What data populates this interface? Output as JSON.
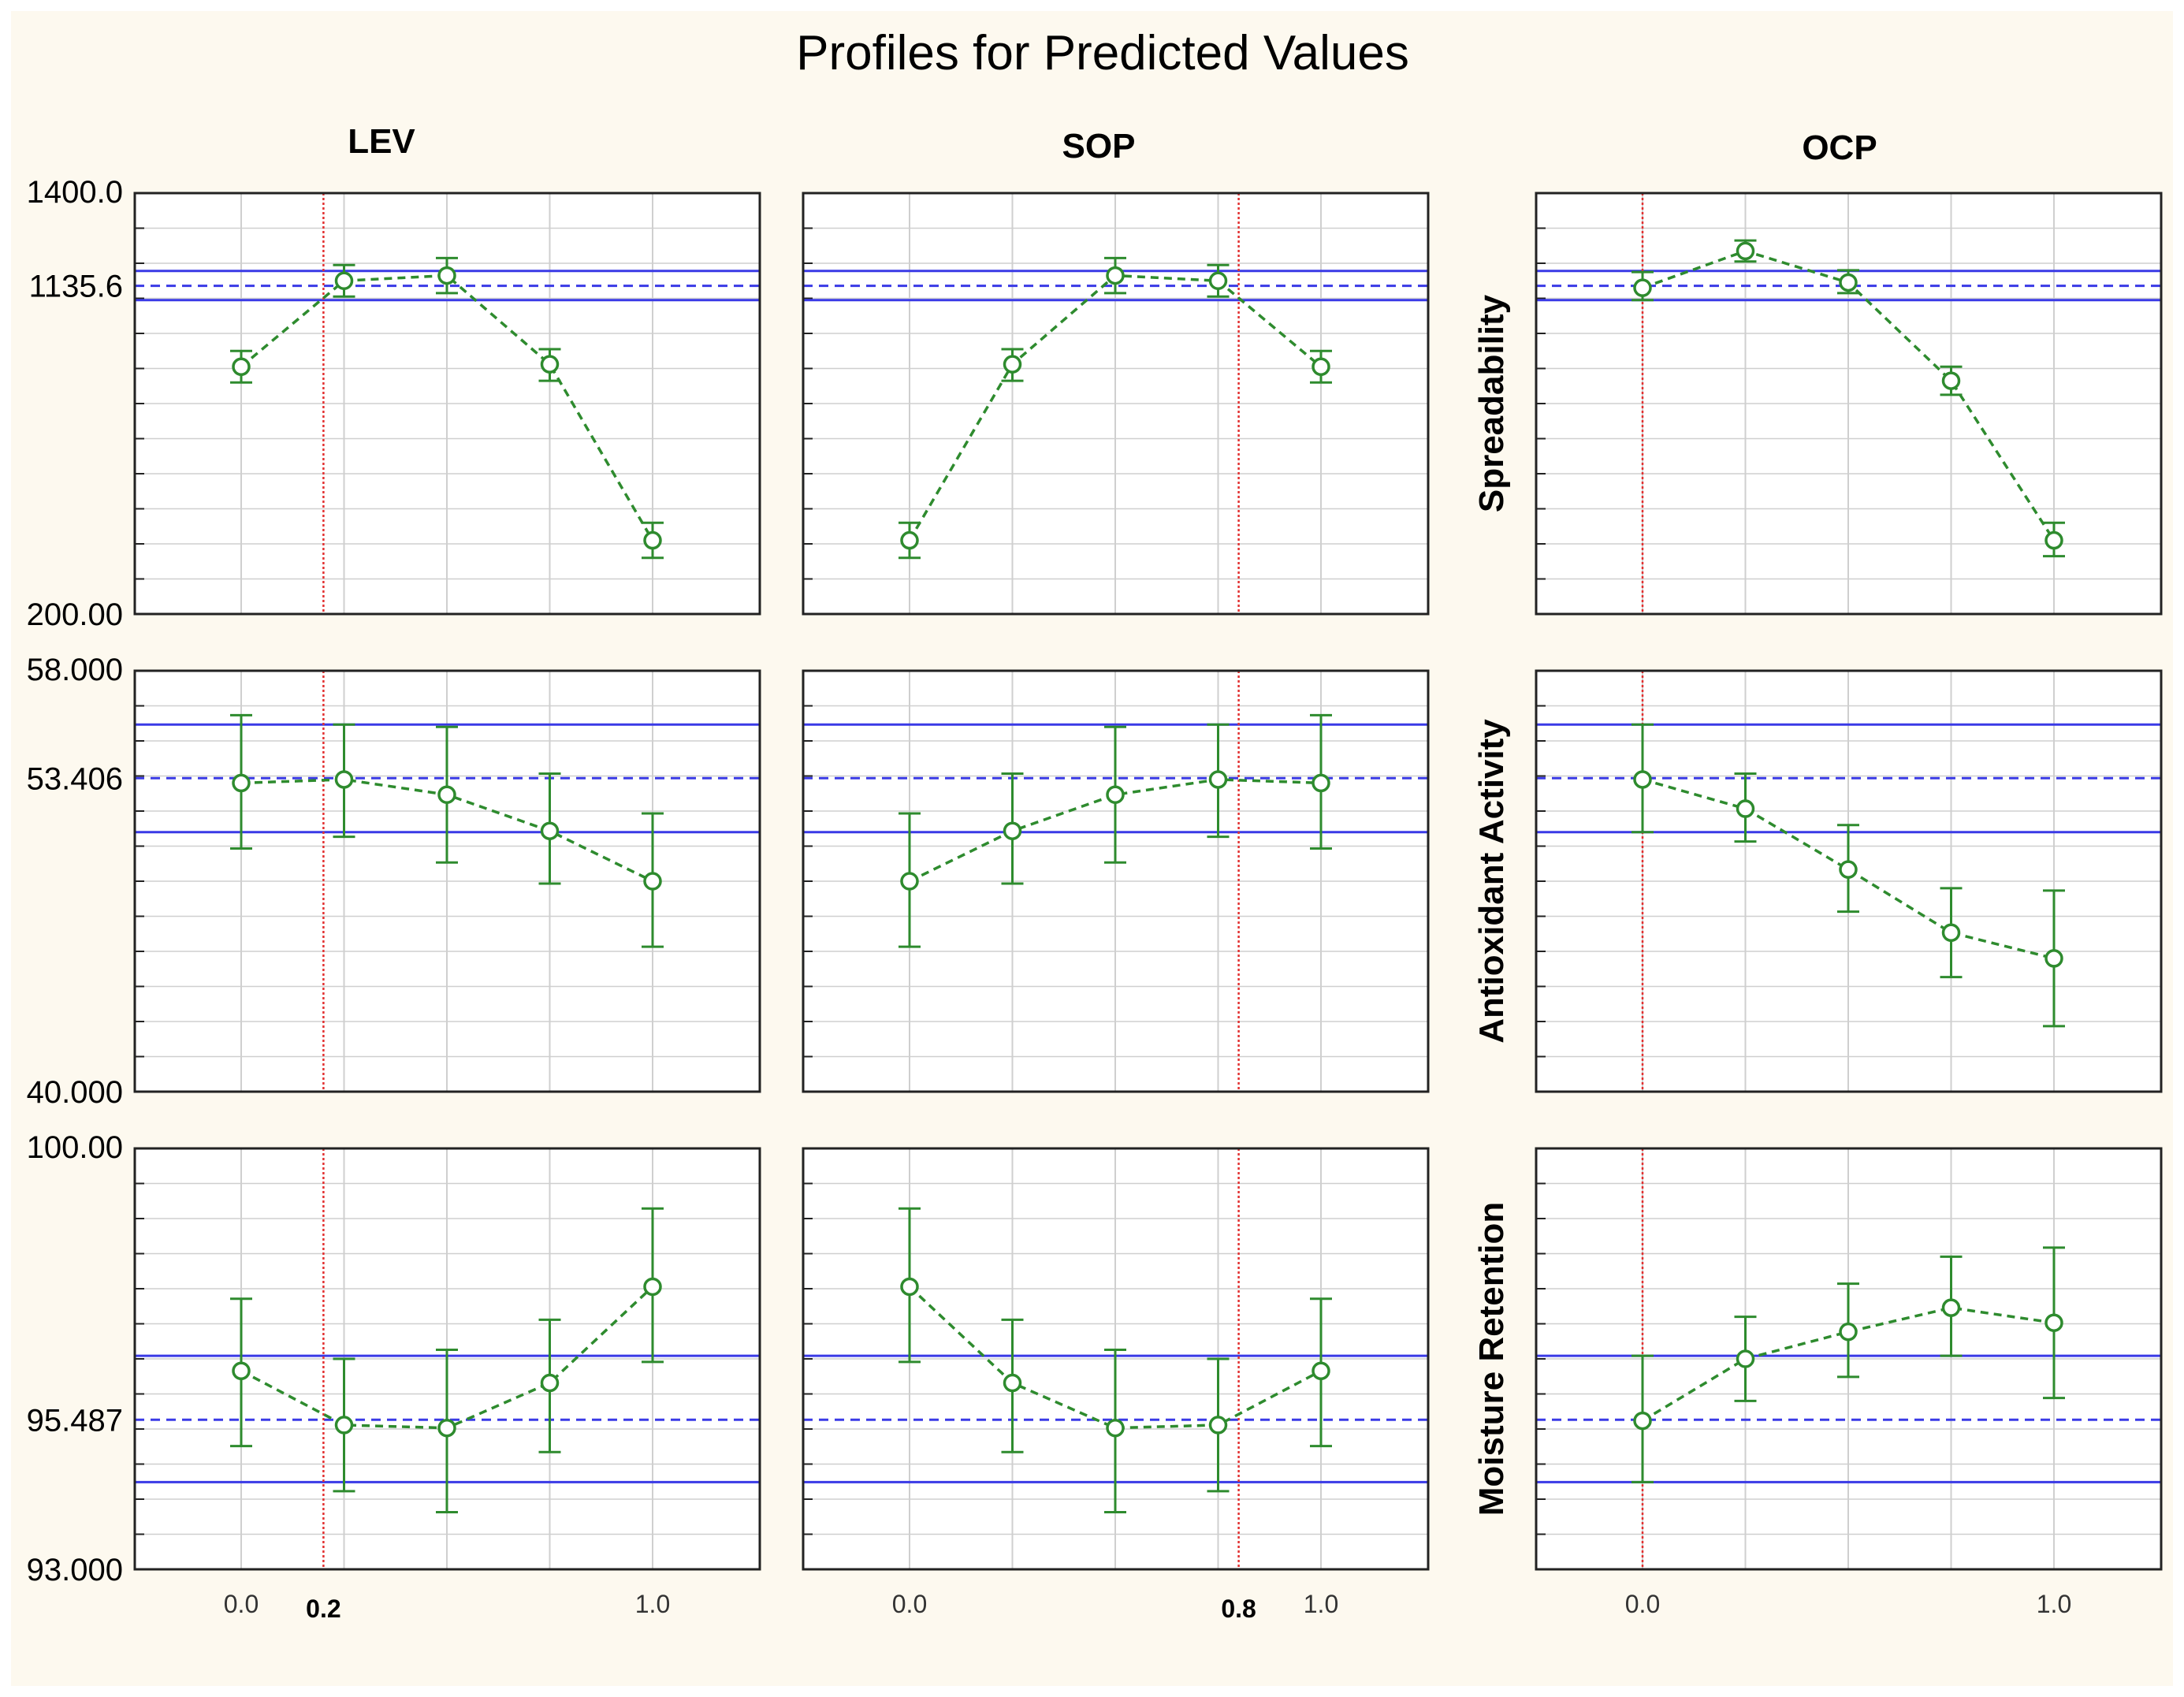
{
  "chart_data": {
    "type": "line",
    "title": "Profiles for Predicted Values",
    "factors": [
      {
        "name": "LEV",
        "current": 0.2,
        "current_label": "0.2",
        "tick_labels": [
          "0.0",
          "1.0"
        ],
        "x": [
          0.0,
          0.25,
          0.5,
          0.75,
          1.0
        ]
      },
      {
        "name": "SOP",
        "current": 0.8,
        "current_label": "0.8",
        "tick_labels": [
          "0.0",
          "1.0"
        ],
        "x": [
          0.0,
          0.25,
          0.5,
          0.75,
          1.0
        ]
      },
      {
        "name": "OCP",
        "current": 0.0,
        "current_label": "0.0",
        "tick_labels": [
          "1.0"
        ],
        "x": [
          0.0,
          0.25,
          0.5,
          0.75,
          1.0
        ]
      }
    ],
    "responses": [
      {
        "name": "Spreadability",
        "ylim": [
          200.0,
          1400.0
        ],
        "tick_labels": [
          "1400.0",
          "1135.6",
          "200.00"
        ],
        "tick_values": [
          1400.0,
          1135.6,
          200.0
        ],
        "predicted": 1135.6,
        "ci": [
          1095,
          1178
        ],
        "series": [
          {
            "factor": "LEV",
            "y": [
              905,
              1150,
              1165,
              912,
              410
            ],
            "lo": [
              860,
              1105,
              1115,
              865,
              360
            ],
            "hi": [
              950,
              1195,
              1215,
              955,
              460
            ]
          },
          {
            "factor": "SOP",
            "y": [
              410,
              912,
              1165,
              1150,
              905
            ],
            "lo": [
              360,
              865,
              1115,
              1105,
              860
            ],
            "hi": [
              460,
              955,
              1215,
              1195,
              950
            ]
          },
          {
            "factor": "OCP",
            "y": [
              1130,
              1235,
              1145,
              865,
              410
            ],
            "lo": [
              1095,
              1205,
              1115,
              825,
              365
            ],
            "hi": [
              1175,
              1265,
              1180,
              905,
              460
            ]
          }
        ]
      },
      {
        "name": "Antioxidant Activity",
        "ylim": [
          40.0,
          58.0
        ],
        "tick_labels": [
          "58.000",
          "53.406",
          "40.000"
        ],
        "tick_values": [
          58.0,
          53.406,
          40.0
        ],
        "predicted": 53.406,
        "ci": [
          51.1,
          55.7
        ],
        "series": [
          {
            "factor": "LEV",
            "y": [
              53.2,
              53.35,
              52.7,
              51.15,
              49.0
            ],
            "lo": [
              50.4,
              50.9,
              49.8,
              48.9,
              46.2
            ],
            "hi": [
              56.1,
              55.7,
              55.6,
              53.6,
              51.9
            ]
          },
          {
            "factor": "SOP",
            "y": [
              49.0,
              51.15,
              52.7,
              53.35,
              53.2
            ],
            "lo": [
              46.2,
              48.9,
              49.8,
              50.9,
              50.4
            ],
            "hi": [
              51.9,
              53.6,
              55.6,
              55.7,
              56.1
            ]
          },
          {
            "factor": "OCP",
            "y": [
              53.35,
              52.1,
              49.5,
              46.8,
              45.7
            ],
            "lo": [
              51.1,
              50.7,
              47.7,
              44.9,
              42.8
            ],
            "hi": [
              55.7,
              53.6,
              51.4,
              48.7,
              48.6
            ]
          }
        ]
      },
      {
        "name": "Moisture Retention",
        "ylim": [
          93.0,
          100.0
        ],
        "tick_labels": [
          "100.00",
          "95.487",
          "93.000"
        ],
        "tick_values": [
          100.0,
          93.0
        ],
        "tick_y_labels_pos": [
          100.0,
          95.487,
          93.0
        ],
        "predicted": 95.487,
        "ci": [
          94.45,
          96.55
        ],
        "series": [
          {
            "factor": "LEV",
            "y": [
              96.3,
              95.4,
              95.35,
              96.1,
              97.7
            ],
            "lo": [
              95.05,
              94.3,
              93.95,
              94.95,
              96.45
            ],
            "hi": [
              97.5,
              96.5,
              96.65,
              97.15,
              99.0
            ]
          },
          {
            "factor": "SOP",
            "y": [
              97.7,
              96.1,
              95.35,
              95.4,
              96.3
            ],
            "lo": [
              96.45,
              94.95,
              93.95,
              94.3,
              95.05
            ],
            "hi": [
              99.0,
              97.15,
              96.65,
              96.5,
              97.5
            ]
          },
          {
            "factor": "OCP",
            "y": [
              95.47,
              96.5,
              96.95,
              97.35,
              97.1
            ],
            "lo": [
              94.45,
              95.8,
              96.2,
              96.55,
              95.85
            ],
            "hi": [
              96.55,
              97.2,
              97.75,
              98.2,
              98.35
            ]
          }
        ]
      }
    ],
    "colors": {
      "curve": "#2e8b2e",
      "predicted": "#3a3ae6",
      "current": "#e23030",
      "grid": "#cfcfcf",
      "frame": "#222222"
    }
  }
}
